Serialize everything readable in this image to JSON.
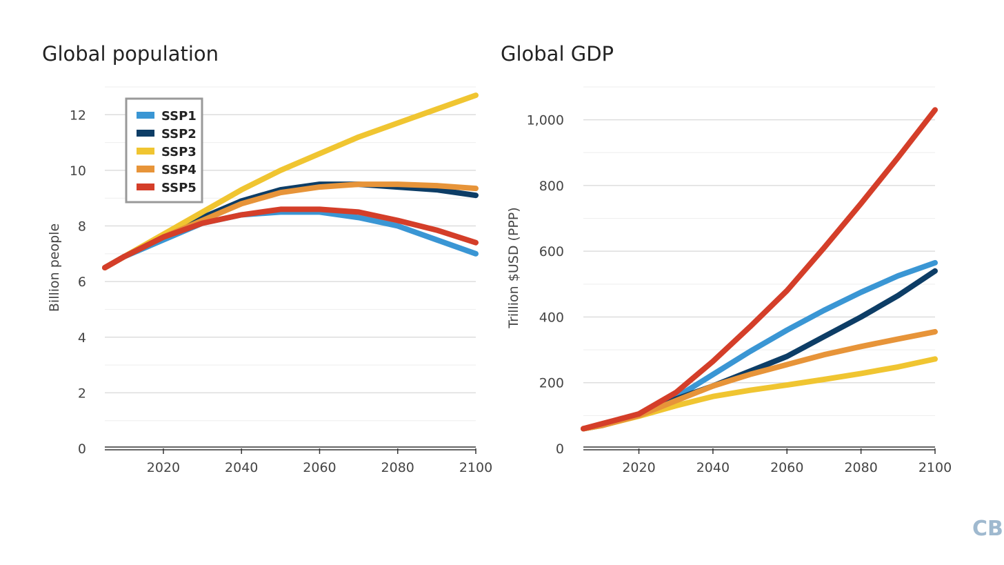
{
  "colors": {
    "SSP1": "#3a96d4",
    "SSP2": "#0d3d66",
    "SSP3": "#f0c531",
    "SSP4": "#e79439",
    "SSP5": "#d43e29"
  },
  "logo": {
    "text": "CB"
  },
  "chart_data": [
    {
      "type": "line",
      "title": "Global population",
      "xlabel": "",
      "ylabel": "Billion people",
      "xlim": [
        2005,
        2100
      ],
      "ylim": [
        0,
        13
      ],
      "xticks": [
        2020,
        2040,
        2060,
        2080,
        2100
      ],
      "yticks": [
        0,
        2,
        4,
        6,
        8,
        10,
        12
      ],
      "grid": true,
      "legend": "top-left",
      "x": [
        2005,
        2010,
        2020,
        2030,
        2040,
        2050,
        2060,
        2070,
        2080,
        2090,
        2100
      ],
      "series": [
        {
          "name": "SSP1",
          "values": [
            6.5,
            6.9,
            7.5,
            8.1,
            8.4,
            8.5,
            8.5,
            8.3,
            8.0,
            7.5,
            7.0
          ]
        },
        {
          "name": "SSP2",
          "values": [
            6.5,
            6.9,
            7.6,
            8.3,
            8.9,
            9.3,
            9.5,
            9.5,
            9.4,
            9.3,
            9.1
          ]
        },
        {
          "name": "SSP3",
          "values": [
            6.5,
            6.9,
            7.7,
            8.5,
            9.3,
            10.0,
            10.6,
            11.2,
            11.7,
            12.2,
            12.7
          ]
        },
        {
          "name": "SSP4",
          "values": [
            6.5,
            6.9,
            7.6,
            8.2,
            8.8,
            9.2,
            9.4,
            9.5,
            9.5,
            9.45,
            9.35
          ]
        },
        {
          "name": "SSP5",
          "values": [
            6.5,
            6.9,
            7.6,
            8.1,
            8.4,
            8.6,
            8.6,
            8.5,
            8.2,
            7.85,
            7.4
          ]
        }
      ]
    },
    {
      "type": "line",
      "title": "Global GDP",
      "xlabel": "",
      "ylabel": "Trillion $USD (PPP)",
      "xlim": [
        2005,
        2100
      ],
      "ylim": [
        0,
        1100
      ],
      "xticks": [
        2020,
        2040,
        2060,
        2080,
        2100
      ],
      "yticks": [
        0,
        200,
        400,
        600,
        800,
        1000
      ],
      "ytick_labels": [
        "0",
        "200",
        "400",
        "600",
        "800",
        "1,000"
      ],
      "grid": true,
      "x": [
        2005,
        2010,
        2020,
        2030,
        2040,
        2050,
        2060,
        2070,
        2080,
        2090,
        2100
      ],
      "series": [
        {
          "name": "SSP1",
          "values": [
            60,
            70,
            100,
            155,
            225,
            295,
            360,
            420,
            475,
            525,
            565
          ]
        },
        {
          "name": "SSP2",
          "values": [
            60,
            70,
            100,
            150,
            190,
            235,
            280,
            340,
            400,
            465,
            540
          ]
        },
        {
          "name": "SSP3",
          "values": [
            60,
            70,
            98,
            130,
            158,
            177,
            193,
            210,
            228,
            248,
            272
          ]
        },
        {
          "name": "SSP4",
          "values": [
            60,
            70,
            100,
            145,
            190,
            225,
            255,
            285,
            310,
            333,
            355
          ]
        },
        {
          "name": "SSP5",
          "values": [
            60,
            75,
            105,
            170,
            265,
            370,
            480,
            610,
            745,
            885,
            1030
          ]
        }
      ]
    }
  ]
}
